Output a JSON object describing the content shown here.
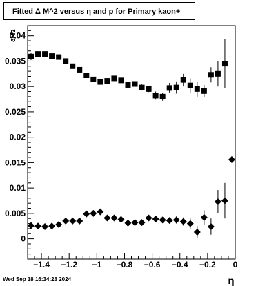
{
  "chart_data": {
    "type": "scatter",
    "title": "Fitted Δ M^2 versus η and p for Primary kaon+",
    "xlabel": "η",
    "ylabel": "δM2",
    "xlim": [
      -1.5,
      0.0
    ],
    "ylim": [
      -0.004,
      0.042
    ],
    "x_ticks": [
      -1.4,
      -1.2,
      -1.0,
      -0.8,
      -0.6,
      -0.4,
      -0.2,
      0
    ],
    "x_tick_labels": [
      "−1.4",
      "−1.2",
      "−1",
      "−0.8",
      "−0.6",
      "−0.4",
      "−0.2",
      "0"
    ],
    "y_ticks": [
      0,
      0.005,
      0.01,
      0.015,
      0.02,
      0.025,
      0.03,
      0.035,
      0.04
    ],
    "y_tick_labels": [
      "0",
      "0.005",
      "0.01",
      "0.015",
      "0.02",
      "0.025",
      "0.03",
      "0.035",
      "0.04"
    ],
    "grid": false,
    "series": [
      {
        "marker": "square",
        "x": [
          -1.475,
          -1.425,
          -1.375,
          -1.325,
          -1.275,
          -1.225,
          -1.175,
          -1.125,
          -1.075,
          -1.025,
          -0.975,
          -0.925,
          -0.875,
          -0.825,
          -0.775,
          -0.725,
          -0.675,
          -0.625,
          -0.575,
          -0.525,
          -0.475,
          -0.425,
          -0.375,
          -0.325,
          -0.275,
          -0.225,
          -0.175,
          -0.125,
          -0.075
        ],
        "y": [
          0.0359,
          0.0364,
          0.0364,
          0.036,
          0.0358,
          0.035,
          0.034,
          0.0333,
          0.0322,
          0.0314,
          0.0309,
          0.0311,
          0.0316,
          0.0312,
          0.0303,
          0.0305,
          0.0298,
          0.0295,
          0.0282,
          0.028,
          0.0297,
          0.0298,
          0.0313,
          0.0302,
          0.0295,
          0.0291,
          0.0323,
          0.0325,
          0.0345
        ],
        "yerr": [
          0.0007,
          0.0005,
          0.0005,
          0.0005,
          0.0005,
          0.0005,
          0.0005,
          0.0005,
          0.0005,
          0.0005,
          0.0005,
          0.0005,
          0.0005,
          0.0005,
          0.0005,
          0.0006,
          0.0006,
          0.0006,
          0.0008,
          0.0008,
          0.001,
          0.0012,
          0.0012,
          0.0014,
          0.0015,
          0.0012,
          0.0015,
          0.0025,
          0.0048
        ]
      },
      {
        "marker": "diamond",
        "x": [
          -1.475,
          -1.425,
          -1.375,
          -1.325,
          -1.275,
          -1.225,
          -1.175,
          -1.125,
          -1.075,
          -1.025,
          -0.975,
          -0.925,
          -0.875,
          -0.825,
          -0.775,
          -0.725,
          -0.675,
          -0.625,
          -0.575,
          -0.525,
          -0.475,
          -0.425,
          -0.375,
          -0.325,
          -0.275,
          -0.225,
          -0.175,
          -0.125,
          -0.075,
          -0.025
        ],
        "y": [
          0.0026,
          0.0025,
          0.0024,
          0.0025,
          0.0028,
          0.0035,
          0.0035,
          0.0035,
          0.0049,
          0.005,
          0.0053,
          0.0041,
          0.0041,
          0.0038,
          0.0031,
          0.0032,
          0.0032,
          0.0041,
          0.0039,
          0.0037,
          0.0036,
          0.0037,
          0.0034,
          0.003,
          0.0013,
          0.0042,
          0.0024,
          0.0073,
          0.0075,
          0.0156
        ],
        "yerr": [
          0.0004,
          0.0003,
          0.0003,
          0.0003,
          0.0003,
          0.0003,
          0.0003,
          0.0003,
          0.0003,
          0.0003,
          0.0003,
          0.0003,
          0.0003,
          0.0003,
          0.0003,
          0.0004,
          0.0004,
          0.0004,
          0.0005,
          0.0005,
          0.0006,
          0.0007,
          0.0008,
          0.001,
          0.0012,
          0.0014,
          0.0016,
          0.0023,
          0.0035,
          0.0
        ]
      }
    ]
  },
  "timestamp": "Wed Sep 18 16:34:28 2024"
}
